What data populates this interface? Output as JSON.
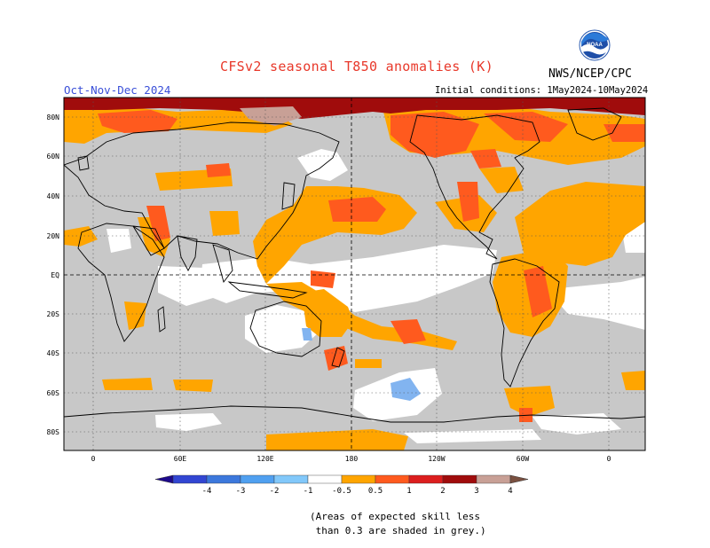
{
  "header": {
    "title": "CFSv2 seasonal T850 anomalies (K)",
    "season": "Oct-Nov-Dec 2024",
    "initial_conditions": "Initial conditions: 1May2024-10May2024",
    "agency": "NWS/NCEP/CPC",
    "logo_text": "NOAA"
  },
  "map": {
    "lat_labels": [
      "80N",
      "60N",
      "40N",
      "20N",
      "EQ",
      "20S",
      "40S",
      "60S",
      "80S"
    ],
    "lon_labels": [
      "0",
      "60E",
      "120E",
      "180",
      "120W",
      "60W",
      "0"
    ],
    "colors": {
      "grey_low_skill": "#c8c8c8",
      "ocean_white": "#ffffff",
      "anom_05_1": "#ffa500",
      "anom_1_2": "#ff5a1e",
      "anom_2_3": "#a00c0c",
      "anom_3_4": "#c8a096",
      "anom_neg_05_1": "#82b4f0"
    }
  },
  "colorbar": {
    "ticks": [
      "-4",
      "-3",
      "-2",
      "-1",
      "-0.5",
      "0.5",
      "1",
      "2",
      "3",
      "4"
    ],
    "colors": [
      "#1e0a8c",
      "#3246d2",
      "#3c78dc",
      "#50a0f0",
      "#82c8fa",
      "#ffffff",
      "#ffa500",
      "#ff5a1e",
      "#dc1e1e",
      "#a00c0c",
      "#c8a096",
      "#7a5040"
    ]
  },
  "footnote": "(Areas of expected skill less\n than 0.3 are shaded in grey.)"
}
